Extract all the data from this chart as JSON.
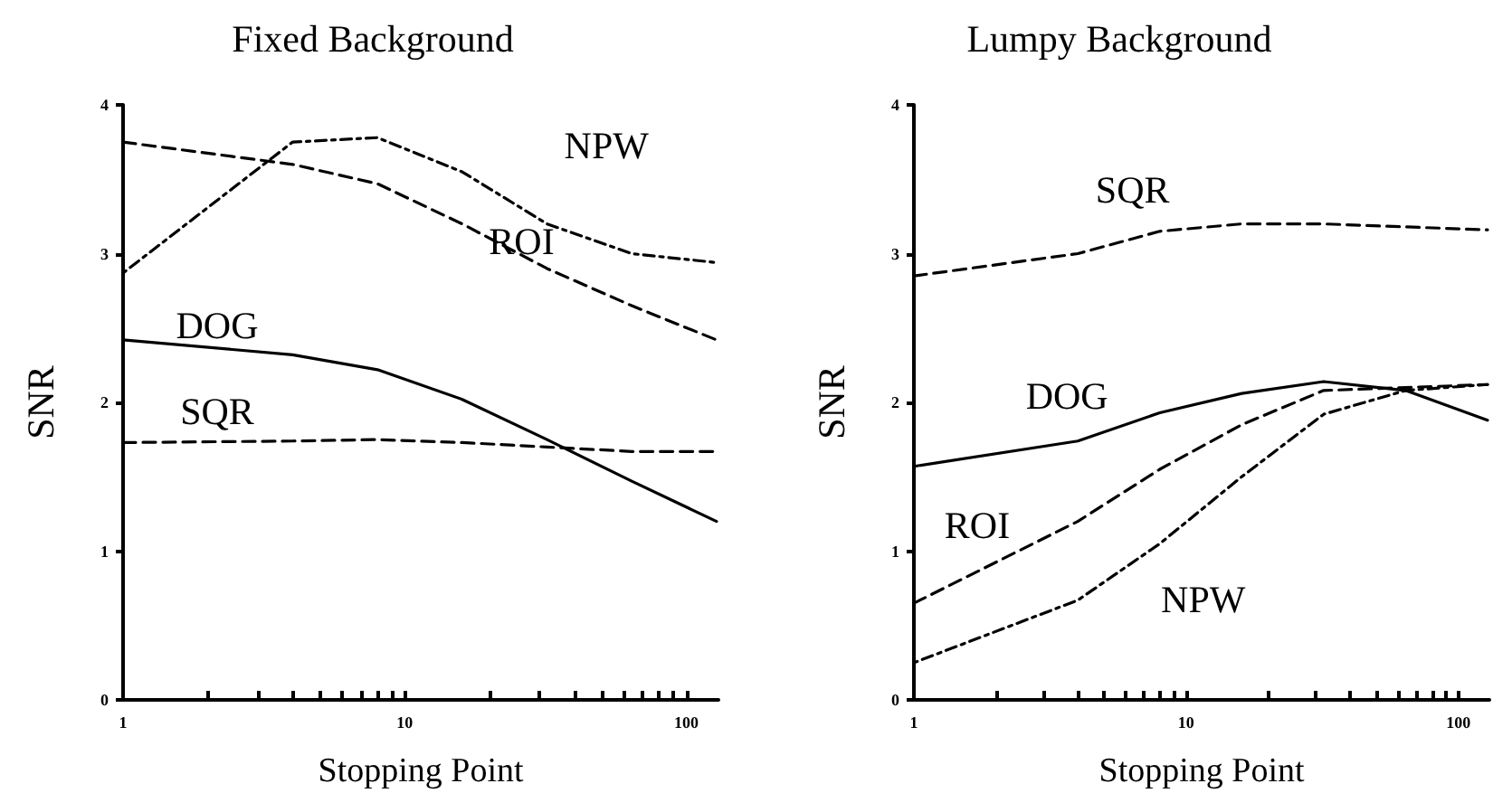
{
  "chart_data": [
    {
      "type": "line",
      "title": "Fixed Background",
      "xlabel": "Stopping Point",
      "ylabel": "SNR",
      "log": "x",
      "xlim": [
        1,
        130
      ],
      "ylim": [
        0,
        4
      ],
      "xticks": [
        1,
        {
          "value": 2,
          "label": null
        },
        {
          "value": 3,
          "label": null
        },
        {
          "value": 4,
          "label": null
        },
        {
          "value": 5,
          "label": null
        },
        {
          "value": 6,
          "label": null
        },
        {
          "value": 7,
          "label": null
        },
        {
          "value": 8,
          "label": null
        },
        {
          "value": 9,
          "label": null
        },
        10,
        {
          "value": 20,
          "label": null
        },
        {
          "value": 30,
          "label": null
        },
        {
          "value": 40,
          "label": null
        },
        {
          "value": 50,
          "label": null
        },
        {
          "value": 60,
          "label": null
        },
        {
          "value": 70,
          "label": null
        },
        {
          "value": 80,
          "label": null
        },
        {
          "value": 90,
          "label": null
        },
        100
      ],
      "yticks": [
        0,
        1,
        2,
        3,
        4
      ],
      "grid": false,
      "legend": false,
      "marker": "none",
      "x": [
        1,
        4,
        8,
        16,
        32,
        64,
        128
      ],
      "series": [
        {
          "name": "ROI",
          "color": "#000000",
          "line_style": "dashed",
          "values": [
            3.75,
            3.6,
            3.47,
            3.2,
            2.9,
            2.65,
            2.42
          ]
        },
        {
          "name": "NPW",
          "color": "#000000",
          "line_style": "dotted",
          "values": [
            2.87,
            3.75,
            3.78,
            3.55,
            3.2,
            3.0,
            2.94
          ]
        },
        {
          "name": "DOG",
          "color": "#000000",
          "line_style": "solid",
          "values": [
            2.42,
            2.32,
            2.22,
            2.02,
            1.75,
            1.47,
            1.2
          ]
        },
        {
          "name": "SQR",
          "color": "#000000",
          "line_style": "dashed",
          "values": [
            1.73,
            1.74,
            1.75,
            1.73,
            1.7,
            1.67,
            1.67
          ]
        }
      ]
    },
    {
      "type": "line",
      "title": "Lumpy Background",
      "xlabel": "Stopping Point",
      "ylabel": "SNR",
      "log": "x",
      "xlim": [
        1,
        130
      ],
      "ylim": [
        0,
        4
      ],
      "xticks": [
        1,
        {
          "value": 2,
          "label": null
        },
        {
          "value": 3,
          "label": null
        },
        {
          "value": 4,
          "label": null
        },
        {
          "value": 5,
          "label": null
        },
        {
          "value": 6,
          "label": null
        },
        {
          "value": 7,
          "label": null
        },
        {
          "value": 8,
          "label": null
        },
        {
          "value": 9,
          "label": null
        },
        10,
        {
          "value": 20,
          "label": null
        },
        {
          "value": 30,
          "label": null
        },
        {
          "value": 40,
          "label": null
        },
        {
          "value": 50,
          "label": null
        },
        {
          "value": 60,
          "label": null
        },
        {
          "value": 70,
          "label": null
        },
        {
          "value": 80,
          "label": null
        },
        {
          "value": 90,
          "label": null
        },
        100
      ],
      "yticks": [
        0,
        1,
        2,
        3,
        4
      ],
      "grid": false,
      "legend": false,
      "marker": "none",
      "x": [
        1,
        4,
        8,
        16,
        32,
        64,
        128
      ],
      "series": [
        {
          "name": "SQR",
          "color": "#000000",
          "line_style": "dashed",
          "values": [
            2.85,
            3.0,
            3.15,
            3.2,
            3.2,
            3.18,
            3.16
          ]
        },
        {
          "name": "DOG",
          "color": "#000000",
          "line_style": "solid",
          "values": [
            1.57,
            1.74,
            1.93,
            2.06,
            2.14,
            2.08,
            1.88
          ]
        },
        {
          "name": "ROI",
          "color": "#000000",
          "line_style": "dashed",
          "values": [
            0.65,
            1.2,
            1.55,
            1.85,
            2.08,
            2.1,
            2.12
          ]
        },
        {
          "name": "NPW",
          "color": "#000000",
          "line_style": "dotted",
          "values": [
            0.25,
            0.67,
            1.05,
            1.5,
            1.92,
            2.08,
            2.12
          ]
        }
      ]
    }
  ]
}
